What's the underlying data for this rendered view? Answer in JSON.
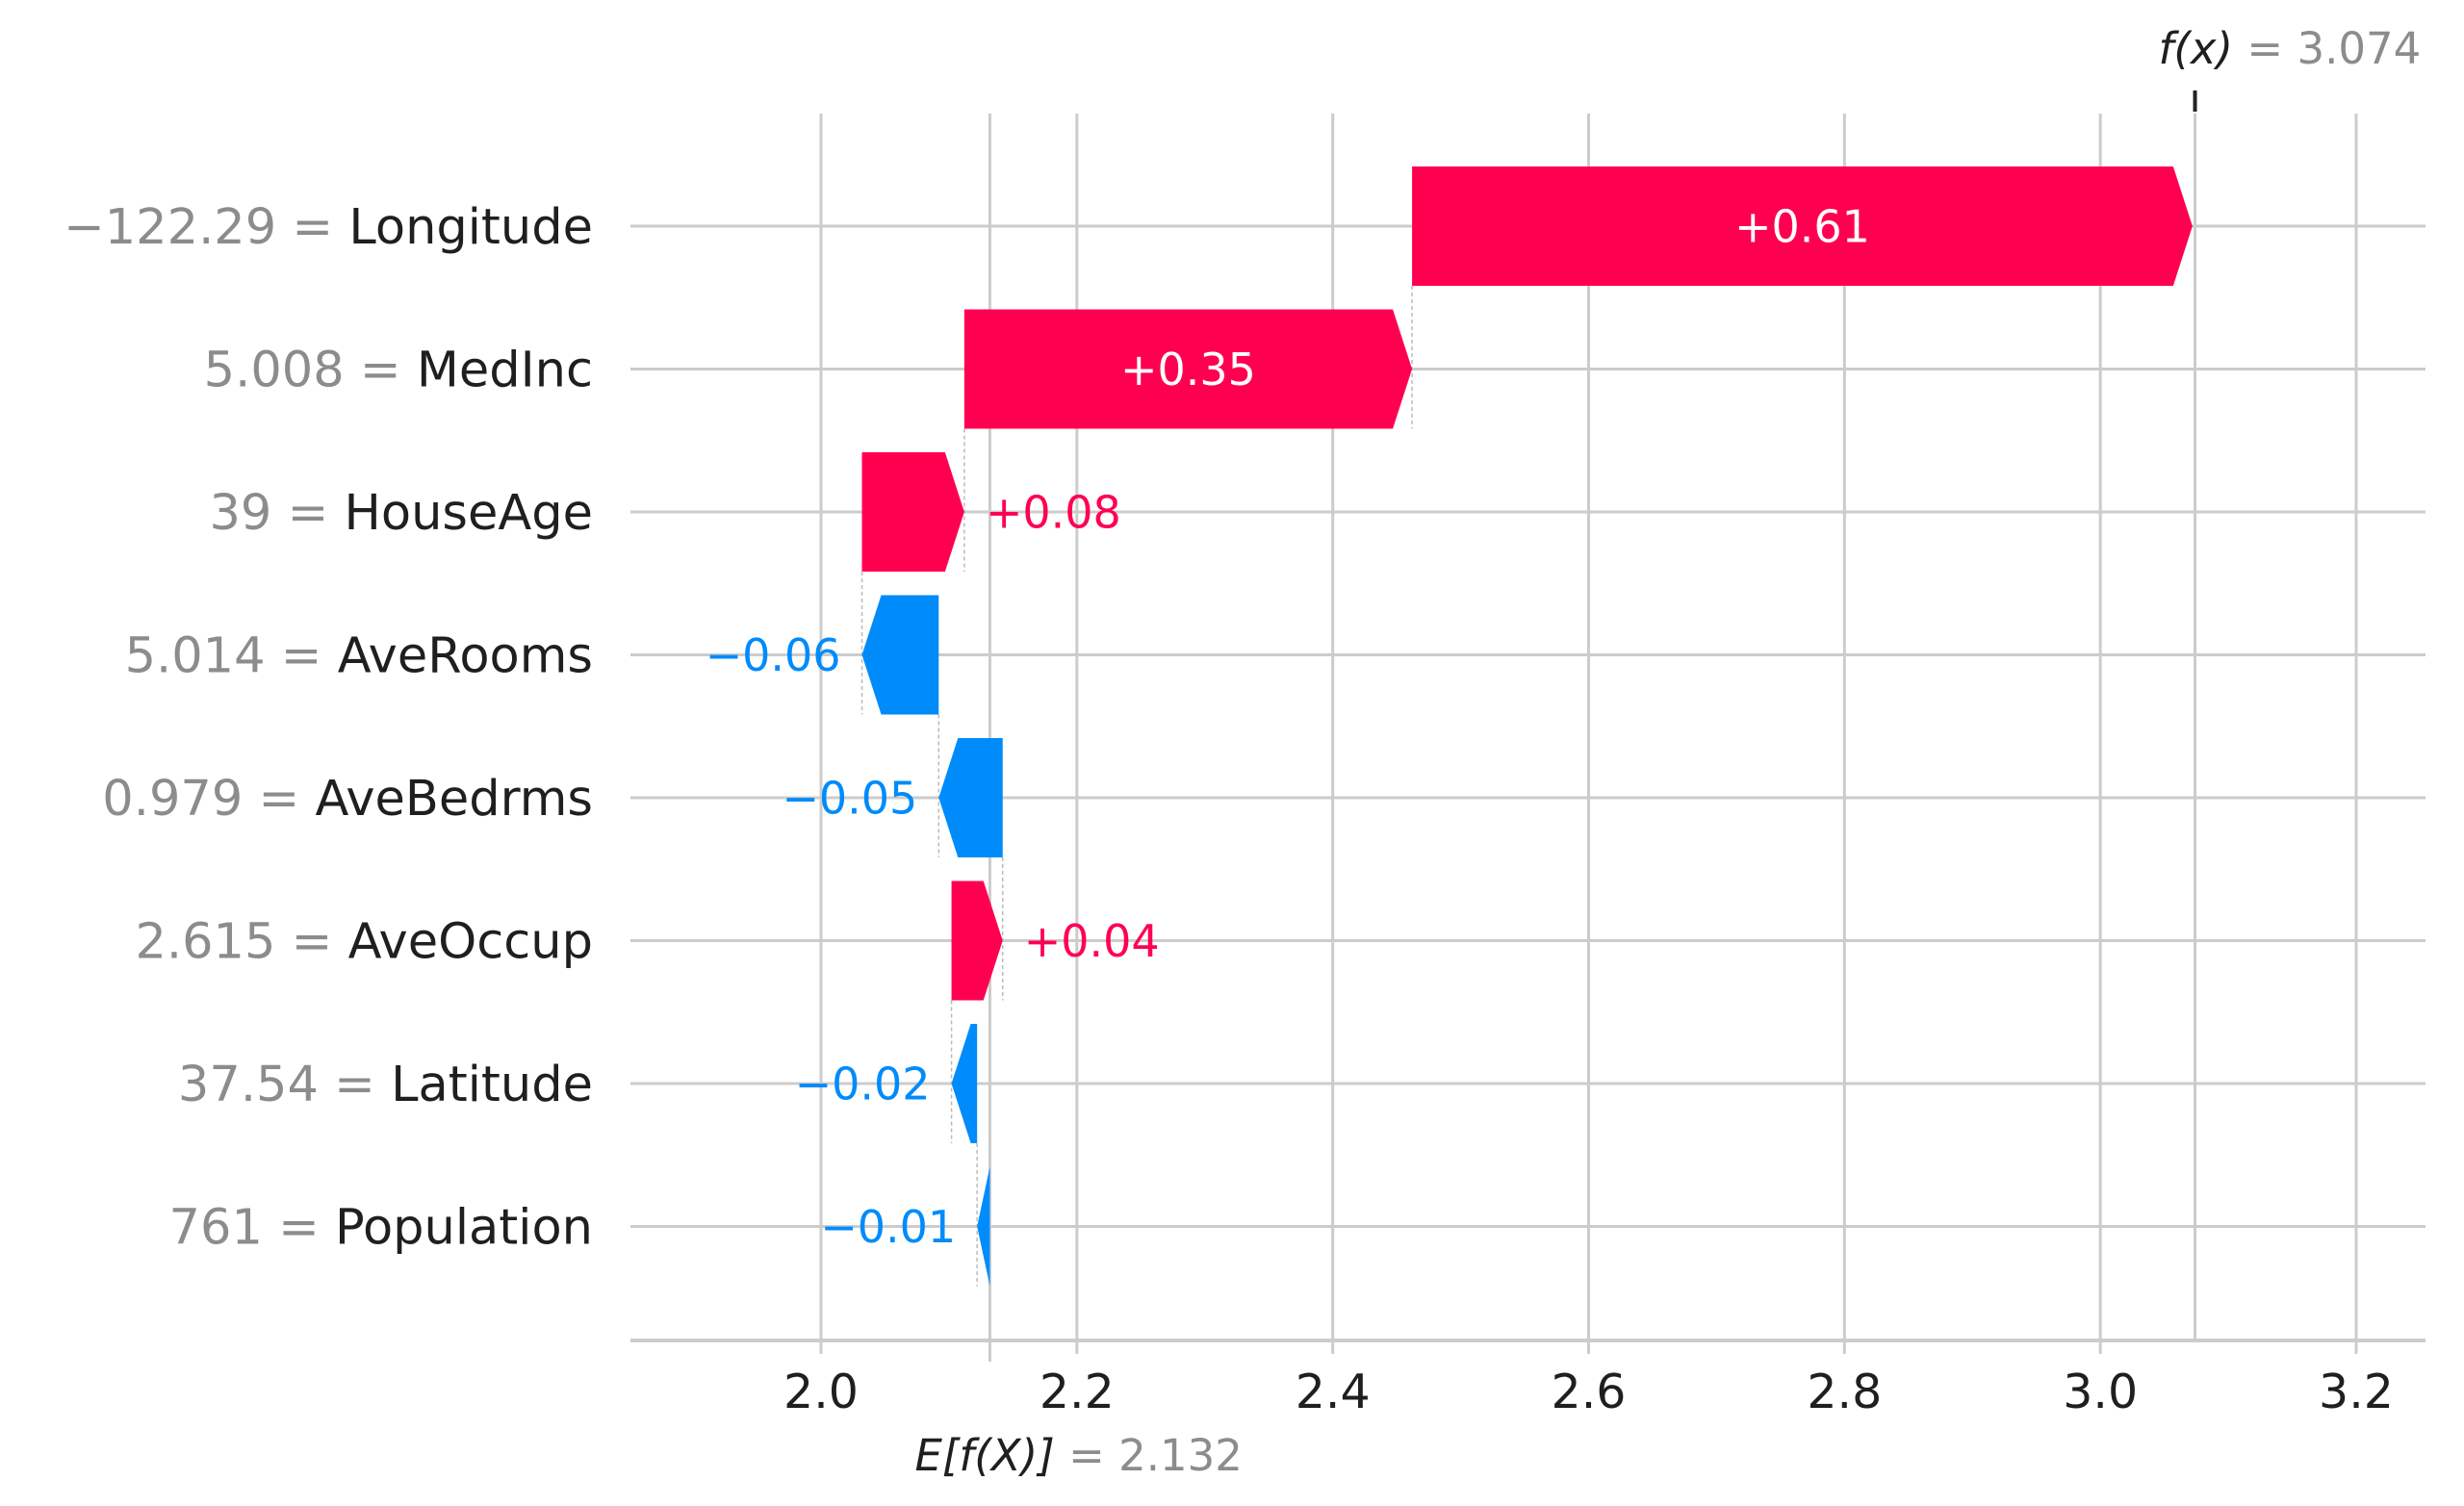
{
  "chart_data": {
    "type": "waterfall",
    "base_value": 2.132,
    "final_value": 3.074,
    "fx_label": {
      "symbol": "f(x)",
      "eq": " = ",
      "value": "3.074"
    },
    "ex_label": {
      "symbol": "E[f(X)]",
      "eq": " = ",
      "value": "2.132"
    },
    "xlim": [
      1.85,
      3.25
    ],
    "xticks": [
      2.0,
      2.2,
      2.4,
      2.6,
      2.8,
      3.0,
      3.2
    ],
    "xtick_labels": [
      "2.0",
      "2.2",
      "2.4",
      "2.6",
      "2.8",
      "3.0",
      "3.2"
    ],
    "grid": true,
    "features": [
      {
        "name": "Longitude",
        "value_label": "−122.29",
        "contribution": 0.61,
        "label": "+0.61"
      },
      {
        "name": "MedInc",
        "value_label": "5.008",
        "contribution": 0.35,
        "label": "+0.35"
      },
      {
        "name": "HouseAge",
        "value_label": "39",
        "contribution": 0.08,
        "label": "+0.08"
      },
      {
        "name": "AveRooms",
        "value_label": "5.014",
        "contribution": -0.06,
        "label": "−0.06"
      },
      {
        "name": "AveBedrms",
        "value_label": "0.979",
        "contribution": -0.05,
        "label": "−0.05"
      },
      {
        "name": "AveOccup",
        "value_label": "2.615",
        "contribution": 0.04,
        "label": "+0.04"
      },
      {
        "name": "Latitude",
        "value_label": "37.54",
        "contribution": -0.02,
        "label": "−0.02"
      },
      {
        "name": "Population",
        "value_label": "761",
        "contribution": -0.01,
        "label": "−0.01"
      }
    ],
    "colors": {
      "positive": "#ff0051",
      "negative": "#008bfb",
      "grid": "#cccccc",
      "text": "#1f1f1f",
      "muted": "#8c8c8c",
      "inside_label": "#ffffff"
    }
  }
}
